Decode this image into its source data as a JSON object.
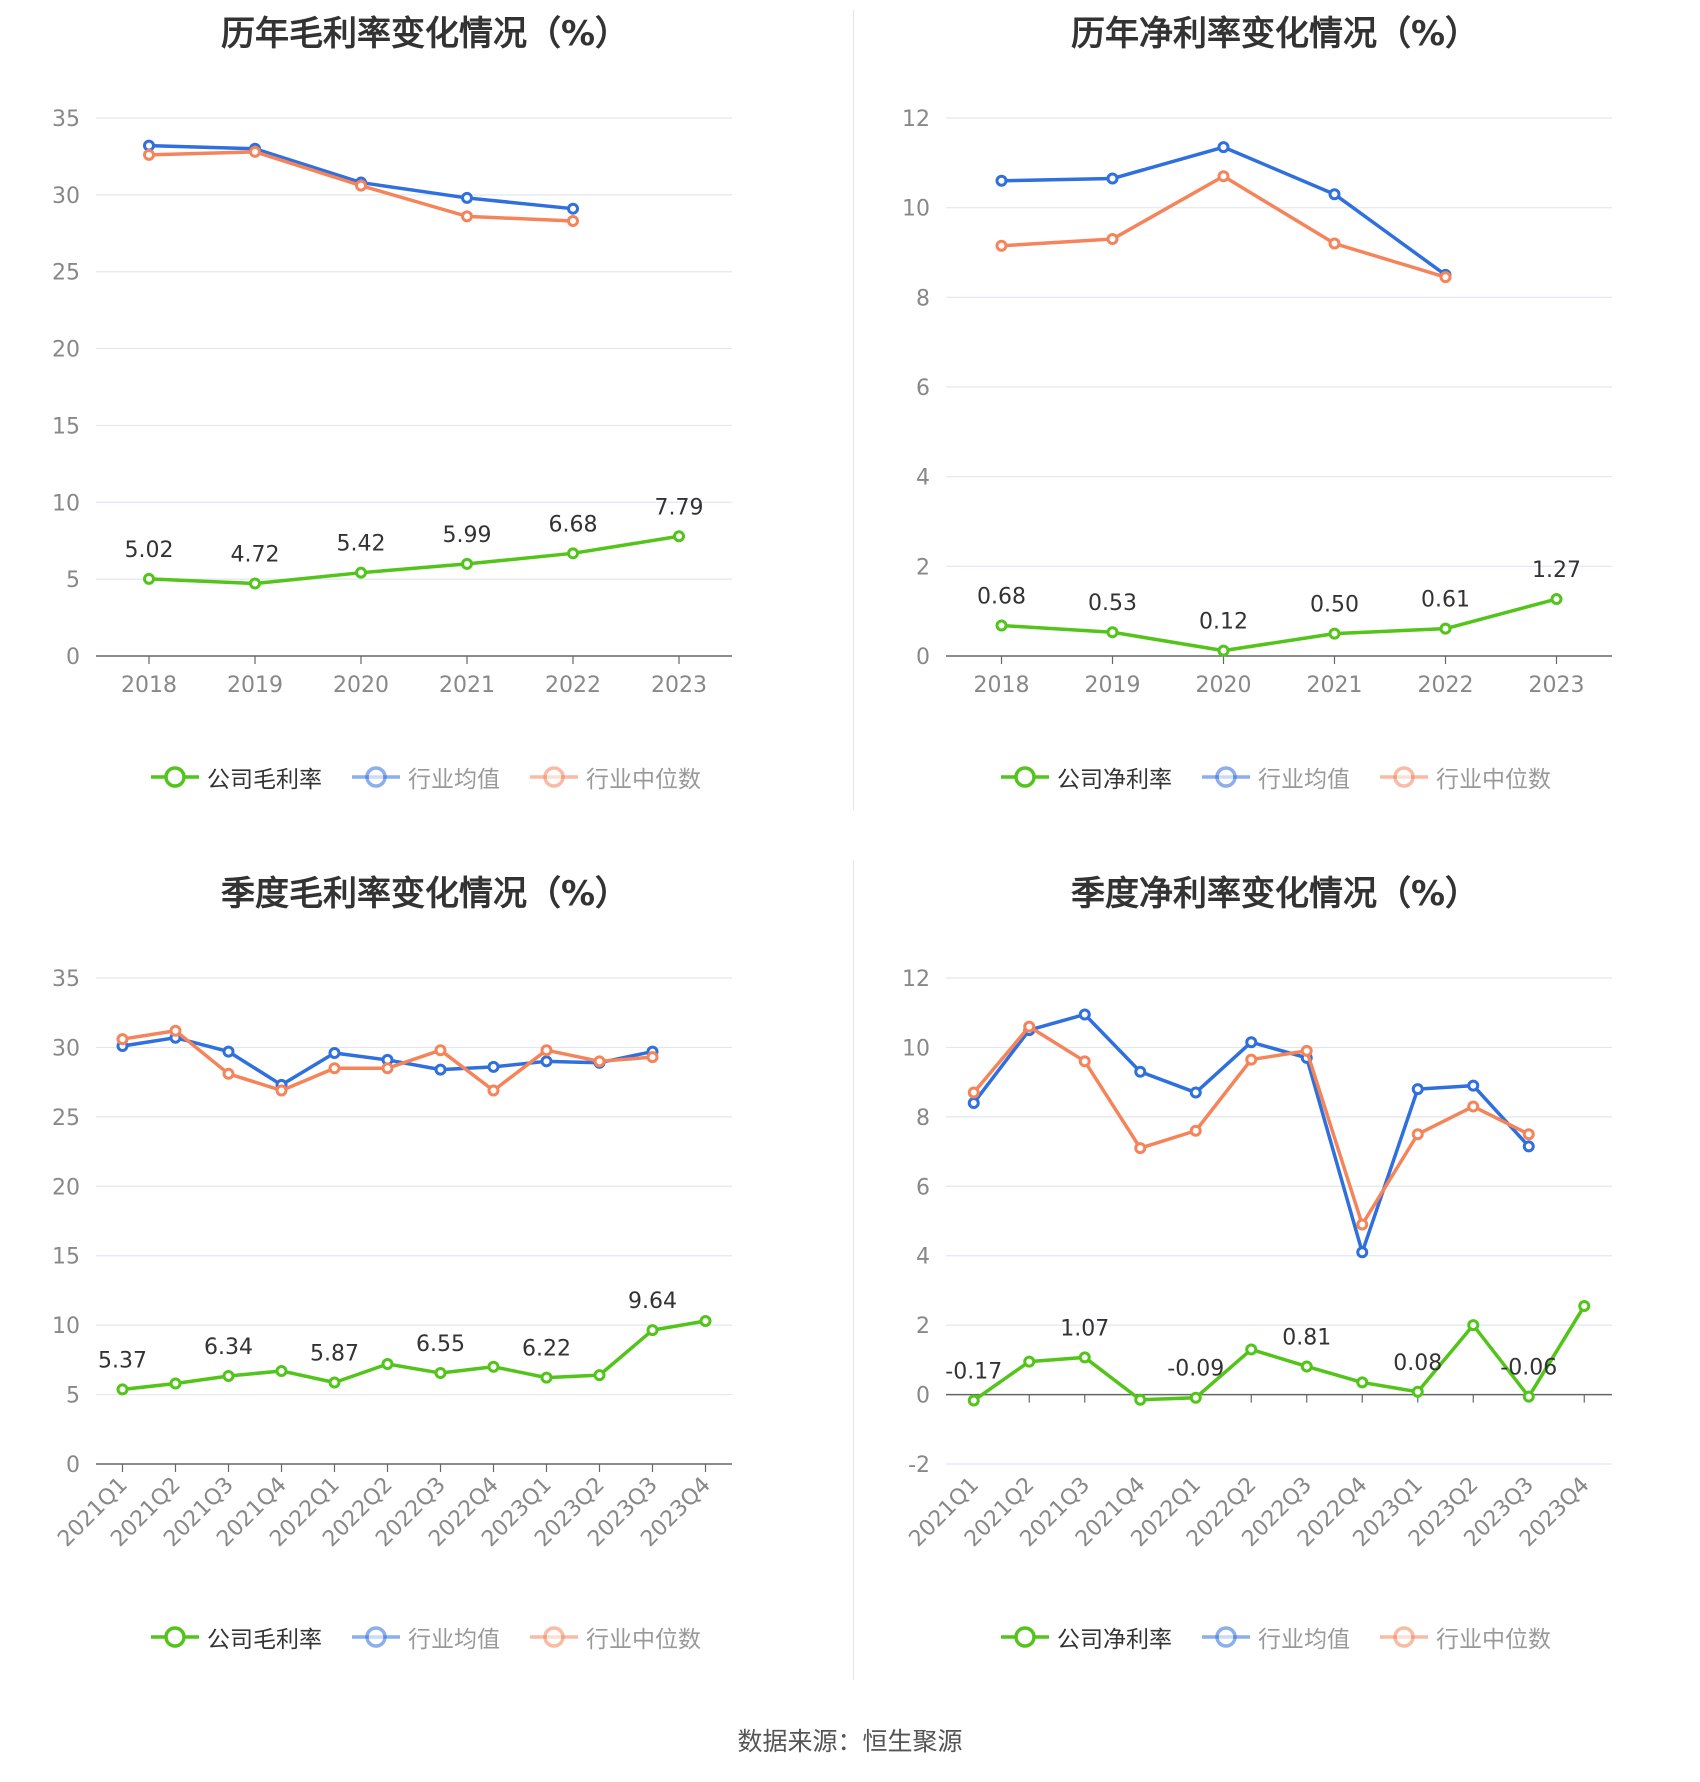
{
  "source_label": "数据来源：恒生聚源",
  "colors": {
    "company": "#52c41a",
    "average": "#2f6fde",
    "median": "#f5845a",
    "grid": "#e3e6ef",
    "axis": "#666666"
  },
  "chart_data": [
    {
      "type": "line",
      "title": "历年毛利率变化情况（%）",
      "categories": [
        "2018",
        "2019",
        "2020",
        "2021",
        "2022",
        "2023"
      ],
      "ylim": [
        0,
        35
      ],
      "yticks": [
        "0",
        "5",
        "10",
        "15",
        "20",
        "25",
        "30",
        "35"
      ],
      "grid": true,
      "legend_position": "bottom",
      "series": [
        {
          "name": "公司毛利率",
          "color_key": "company",
          "values": [
            5.02,
            4.72,
            5.42,
            5.99,
            6.68,
            7.79
          ],
          "labels": [
            "5.02",
            "4.72",
            "5.42",
            "5.99",
            "6.68",
            "7.79"
          ]
        },
        {
          "name": "行业均值",
          "color_key": "average",
          "values": [
            33.2,
            33.0,
            30.8,
            29.8,
            29.1,
            null
          ]
        },
        {
          "name": "行业中位数",
          "color_key": "median",
          "values": [
            32.6,
            32.8,
            30.6,
            28.6,
            28.3,
            null
          ]
        }
      ]
    },
    {
      "type": "line",
      "title": "历年净利率变化情况（%）",
      "categories": [
        "2018",
        "2019",
        "2020",
        "2021",
        "2022",
        "2023"
      ],
      "ylim": [
        0,
        12
      ],
      "yticks": [
        "0",
        "2",
        "4",
        "6",
        "8",
        "10",
        "12"
      ],
      "grid": true,
      "legend_position": "bottom",
      "series": [
        {
          "name": "公司净利率",
          "color_key": "company",
          "values": [
            0.68,
            0.53,
            0.12,
            0.5,
            0.61,
            1.27
          ],
          "labels": [
            "0.68",
            "0.53",
            "0.12",
            "0.50",
            "0.61",
            "1.27"
          ]
        },
        {
          "name": "行业均值",
          "color_key": "average",
          "values": [
            10.6,
            10.65,
            11.35,
            10.3,
            8.5,
            null
          ]
        },
        {
          "name": "行业中位数",
          "color_key": "median",
          "values": [
            9.15,
            9.3,
            10.7,
            9.2,
            8.45,
            null
          ]
        }
      ]
    },
    {
      "type": "line",
      "title": "季度毛利率变化情况（%）",
      "categories": [
        "2021Q1",
        "2021Q2",
        "2021Q3",
        "2021Q4",
        "2022Q1",
        "2022Q2",
        "2022Q3",
        "2022Q4",
        "2023Q1",
        "2023Q2",
        "2023Q3",
        "2023Q4"
      ],
      "ylim": [
        0,
        35
      ],
      "yticks": [
        "0",
        "5",
        "10",
        "15",
        "20",
        "25",
        "30",
        "35"
      ],
      "grid": true,
      "legend_position": "bottom",
      "series": [
        {
          "name": "公司毛利率",
          "color_key": "company",
          "values": [
            5.37,
            5.8,
            6.34,
            6.7,
            5.87,
            7.2,
            6.55,
            7.0,
            6.22,
            6.4,
            9.64,
            10.3
          ],
          "labels": [
            "5.37",
            "",
            "6.34",
            "",
            "5.87",
            "",
            "6.55",
            "",
            "6.22",
            "",
            "9.64",
            ""
          ]
        },
        {
          "name": "行业均值",
          "color_key": "average",
          "values": [
            30.1,
            30.7,
            29.7,
            27.3,
            29.6,
            29.1,
            28.4,
            28.6,
            29.0,
            28.9,
            29.7,
            null
          ]
        },
        {
          "name": "行业中位数",
          "color_key": "median",
          "values": [
            30.6,
            31.2,
            28.1,
            26.9,
            28.5,
            28.5,
            29.8,
            26.9,
            29.8,
            29.0,
            29.3,
            null
          ]
        }
      ]
    },
    {
      "type": "line",
      "title": "季度净利率变化情况（%）",
      "categories": [
        "2021Q1",
        "2021Q2",
        "2021Q3",
        "2021Q4",
        "2022Q1",
        "2022Q2",
        "2022Q3",
        "2022Q4",
        "2023Q1",
        "2023Q2",
        "2023Q3",
        "2023Q4"
      ],
      "ylim": [
        -2,
        12
      ],
      "yticks": [
        "-2",
        "0",
        "2",
        "4",
        "6",
        "8",
        "10",
        "12"
      ],
      "grid": true,
      "legend_position": "bottom",
      "series": [
        {
          "name": "公司净利率",
          "color_key": "company",
          "values": [
            -0.17,
            0.95,
            1.07,
            -0.15,
            -0.09,
            1.3,
            0.81,
            0.35,
            0.08,
            2.0,
            -0.06,
            2.55
          ],
          "labels": [
            "-0.17",
            "",
            "1.07",
            "",
            "-0.09",
            "",
            "0.81",
            "",
            "0.08",
            "",
            "-0.06",
            ""
          ]
        },
        {
          "name": "行业均值",
          "color_key": "average",
          "values": [
            8.4,
            10.5,
            10.95,
            9.3,
            8.7,
            10.15,
            9.7,
            4.1,
            8.8,
            8.9,
            7.15,
            null
          ]
        },
        {
          "name": "行业中位数",
          "color_key": "median",
          "values": [
            8.7,
            10.6,
            9.6,
            7.1,
            7.6,
            9.65,
            9.9,
            4.9,
            7.5,
            8.3,
            7.5,
            null
          ]
        }
      ]
    }
  ]
}
